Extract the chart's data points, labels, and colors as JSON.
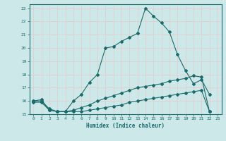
{
  "xlabel": "Humidex (Indice chaleur)",
  "bg_color": "#cce8e8",
  "line_color": "#1a6b6b",
  "grid_color": "#b0d8d8",
  "xlim": [
    -0.5,
    23.5
  ],
  "ylim": [
    15,
    23.3
  ],
  "yticks": [
    15,
    16,
    17,
    18,
    19,
    20,
    21,
    22,
    23
  ],
  "xticks": [
    0,
    1,
    2,
    3,
    4,
    5,
    6,
    7,
    8,
    9,
    10,
    11,
    12,
    13,
    14,
    15,
    16,
    17,
    18,
    19,
    20,
    21,
    22,
    23
  ],
  "line1_x": [
    0,
    1,
    2,
    3,
    4,
    5,
    6,
    7,
    8,
    9,
    10,
    11,
    12,
    13,
    14,
    15,
    16,
    17,
    18,
    19,
    20,
    21,
    22
  ],
  "line1_y": [
    16.0,
    16.1,
    15.3,
    15.2,
    15.2,
    16.0,
    16.5,
    17.4,
    18.0,
    20.0,
    20.1,
    20.5,
    20.8,
    21.1,
    23.0,
    22.4,
    21.9,
    21.2,
    19.5,
    18.3,
    17.3,
    17.6,
    16.5
  ],
  "line2_x": [
    0,
    1,
    2,
    3,
    4,
    5,
    6,
    7,
    8,
    9,
    10,
    11,
    12,
    13,
    14,
    15,
    16,
    17,
    18,
    19,
    20,
    21,
    22
  ],
  "line2_y": [
    16.0,
    16.0,
    15.4,
    15.2,
    15.2,
    15.3,
    15.5,
    15.7,
    16.0,
    16.2,
    16.4,
    16.6,
    16.8,
    17.0,
    17.1,
    17.2,
    17.3,
    17.5,
    17.6,
    17.7,
    17.9,
    17.8,
    15.2
  ],
  "line3_x": [
    0,
    1,
    2,
    3,
    4,
    5,
    6,
    7,
    8,
    9,
    10,
    11,
    12,
    13,
    14,
    15,
    16,
    17,
    18,
    19,
    20,
    21,
    22
  ],
  "line3_y": [
    15.9,
    15.9,
    15.3,
    15.2,
    15.2,
    15.2,
    15.2,
    15.3,
    15.4,
    15.5,
    15.6,
    15.7,
    15.9,
    16.0,
    16.1,
    16.2,
    16.3,
    16.4,
    16.5,
    16.6,
    16.7,
    16.8,
    15.2
  ]
}
